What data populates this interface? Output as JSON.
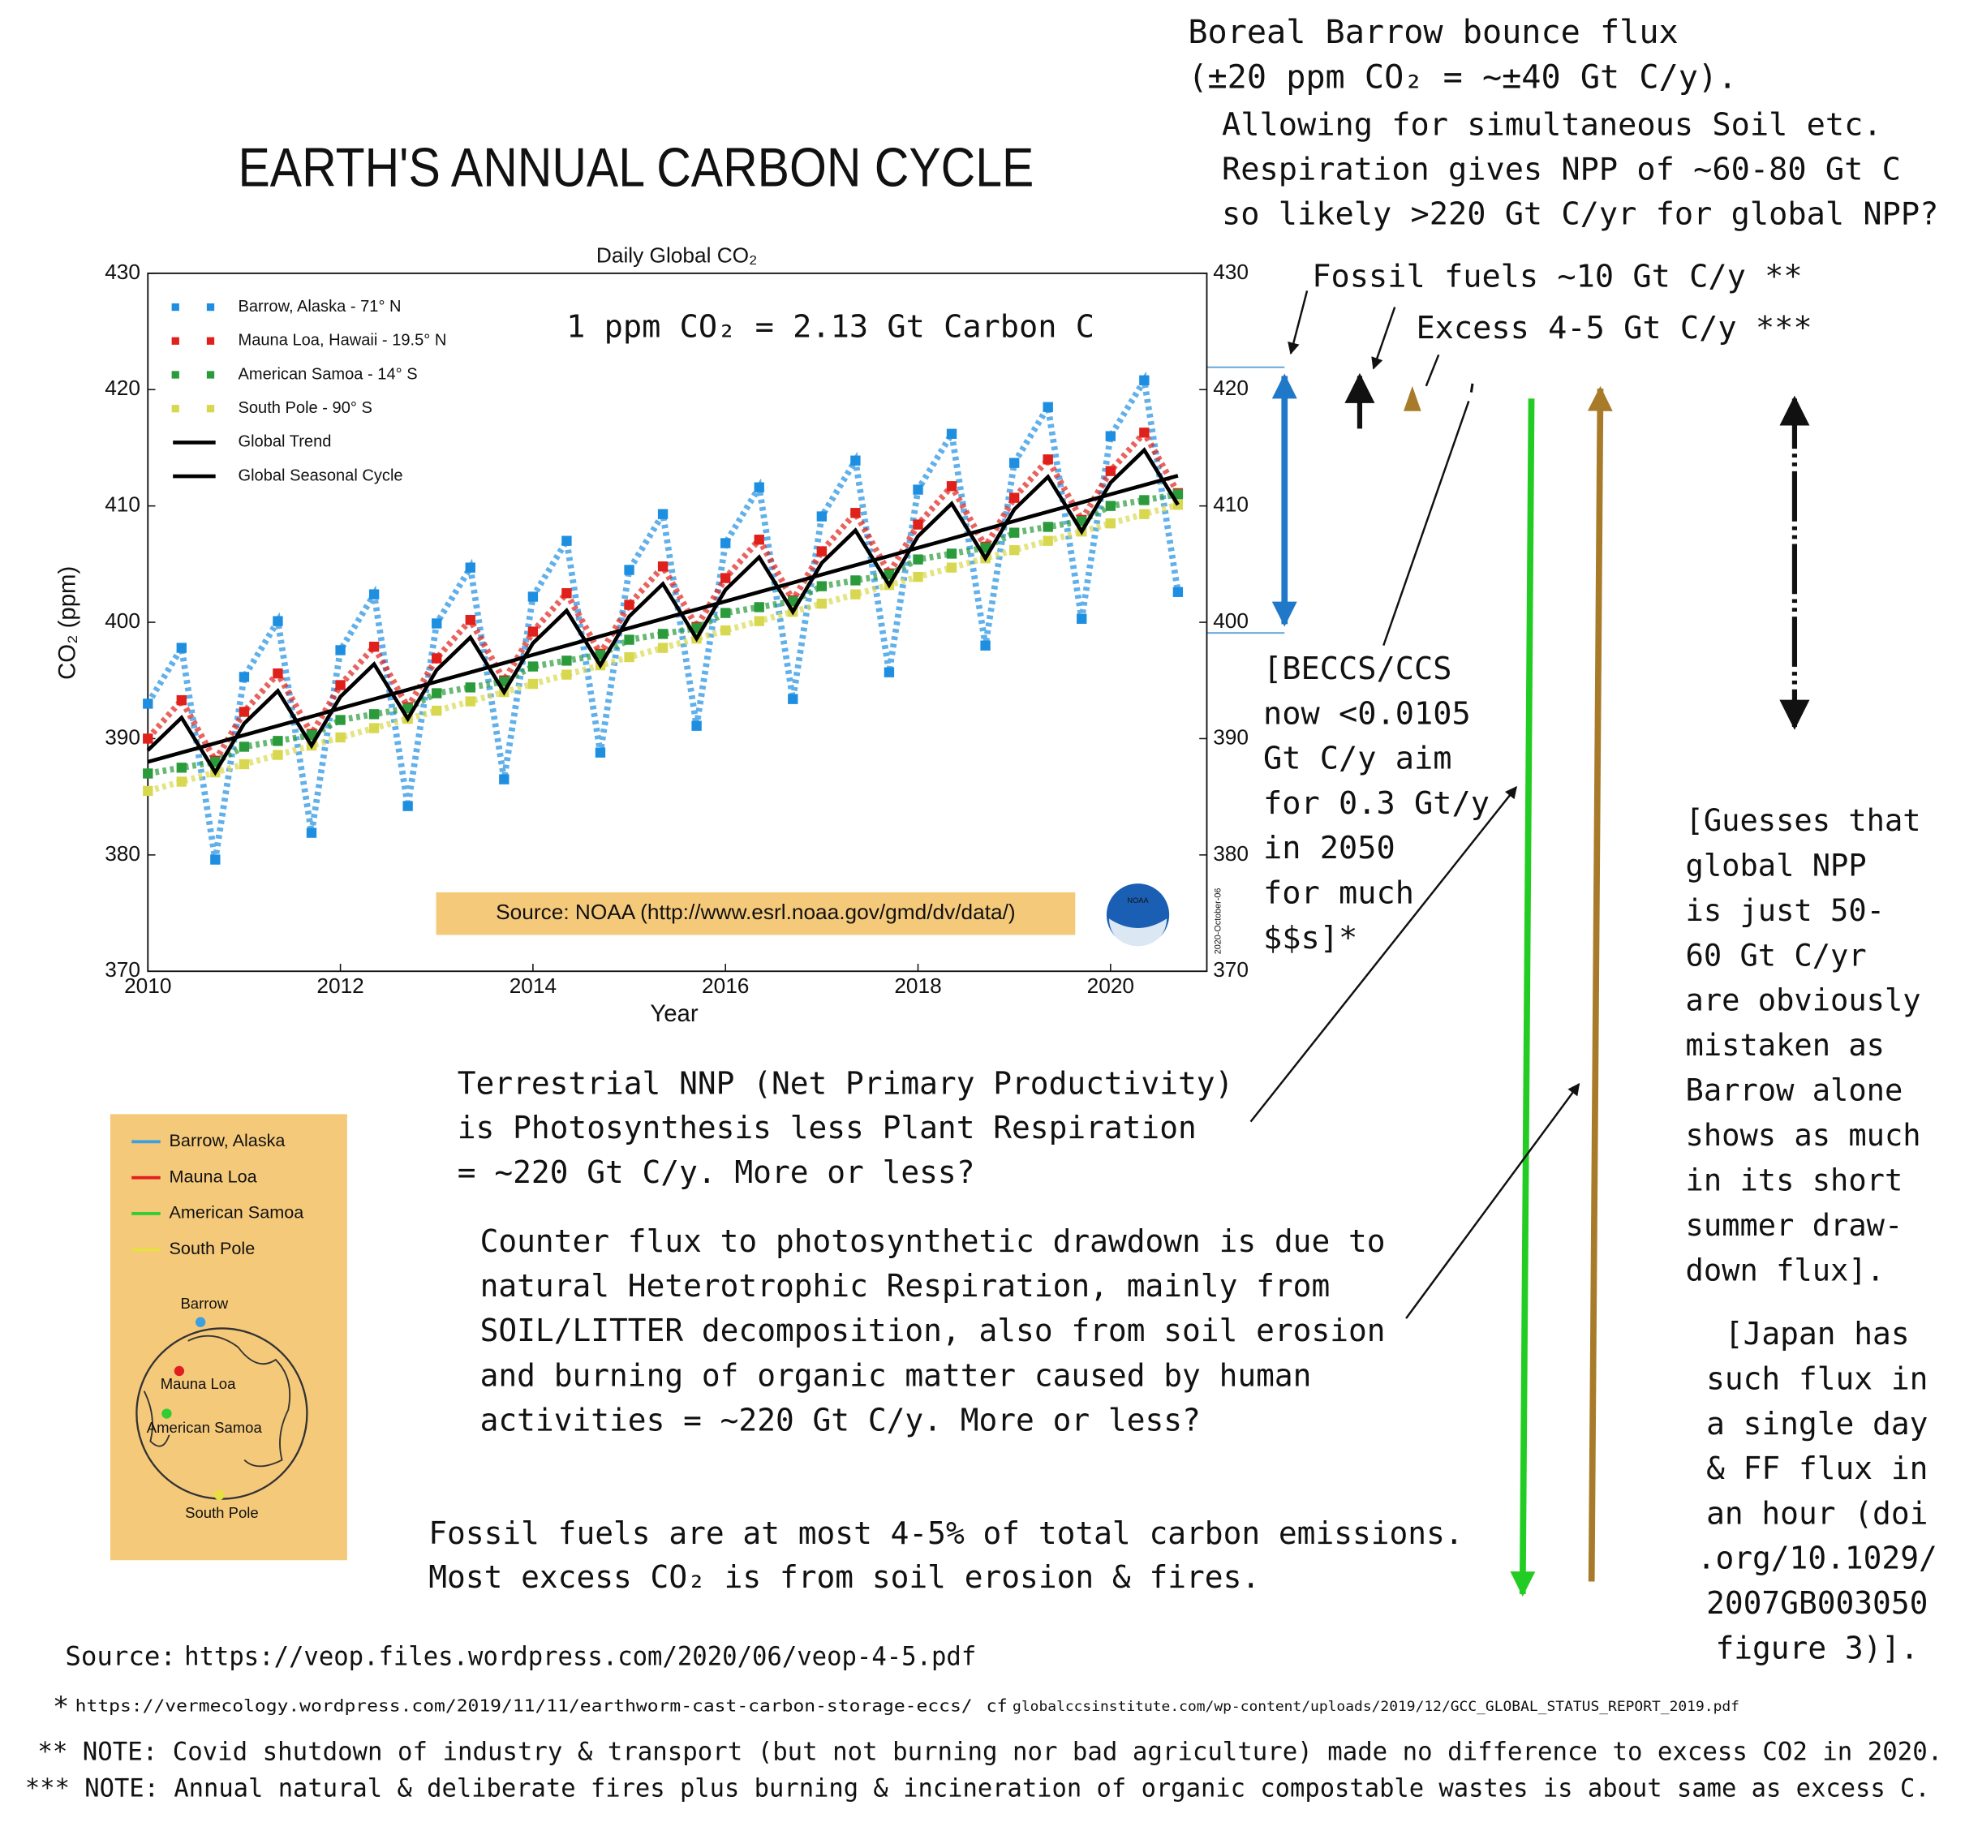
{
  "chart_data": {
    "type": "line",
    "title": "Daily Global CO₂",
    "x_label": "Year",
    "y_label": "CO₂ (ppm)",
    "conversion": "1 ppm CO₂ = 2.13 Gt Carbon C",
    "source": "Source: NOAA (http://www.esrl.noaa.gov/gmd/dv/data/)",
    "logo": "NOAA",
    "stamp": "2020-October-06",
    "x": [
      2010,
      2010.35,
      2010.7,
      2011,
      2011.35,
      2011.7,
      2012,
      2012.35,
      2012.7,
      2013,
      2013.35,
      2013.7,
      2014,
      2014.35,
      2014.7,
      2015,
      2015.35,
      2015.7,
      2016,
      2016.35,
      2016.7,
      2017,
      2017.35,
      2017.7,
      2018,
      2018.35,
      2018.7,
      2019,
      2019.35,
      2019.7,
      2020,
      2020.35,
      2020.7
    ],
    "xlim": [
      2010,
      2021
    ],
    "xticks": [
      2010,
      2012,
      2014,
      2016,
      2018,
      2020
    ],
    "ylim": [
      370,
      430
    ],
    "yticks": [
      370,
      380,
      390,
      400,
      410,
      420,
      430
    ],
    "y2lim": [
      370,
      430
    ],
    "y2ticks": [
      370,
      380,
      390,
      400,
      410,
      420,
      430
    ],
    "legend": "upper left",
    "series": [
      {
        "name": "Barrow, Alaska - 71° N",
        "color": "#1e8fe0",
        "style": "markers",
        "values": [
          393.0,
          397.8,
          379.6,
          395.3,
          400.1,
          381.9,
          397.6,
          402.4,
          384.2,
          399.9,
          404.7,
          386.5,
          402.2,
          407.0,
          388.8,
          404.5,
          409.3,
          391.1,
          406.8,
          411.6,
          393.4,
          409.1,
          413.9,
          395.7,
          411.4,
          416.2,
          398.0,
          413.7,
          418.5,
          400.3,
          416.0,
          420.8,
          402.6
        ]
      },
      {
        "name": "Mauna Loa, Hawaii - 19.5° N",
        "color": "#e0201a",
        "style": "markers",
        "values": [
          390.0,
          393.3,
          388.1,
          392.3,
          395.6,
          390.4,
          394.6,
          397.9,
          392.7,
          396.9,
          400.2,
          395.0,
          399.2,
          402.5,
          397.3,
          401.5,
          404.8,
          399.6,
          403.8,
          407.1,
          401.9,
          406.1,
          409.4,
          404.2,
          408.4,
          411.7,
          406.5,
          410.7,
          414.0,
          408.8,
          413.0,
          416.3,
          411.1
        ]
      },
      {
        "name": "American Samoa - 14° S",
        "color": "#2a9a3a",
        "style": "markers",
        "values": [
          387.0,
          387.5,
          388.0,
          389.3,
          389.8,
          390.3,
          391.6,
          392.1,
          392.6,
          393.9,
          394.4,
          394.9,
          396.2,
          396.7,
          397.2,
          398.5,
          399.0,
          399.5,
          400.8,
          401.3,
          401.8,
          403.1,
          403.6,
          404.1,
          405.4,
          405.9,
          406.4,
          407.7,
          408.2,
          408.7,
          410.0,
          410.5,
          411.0
        ]
      },
      {
        "name": "South Pole - 90° S",
        "color": "#d8d850",
        "style": "markers",
        "values": [
          385.5,
          386.3,
          387.1,
          387.8,
          388.6,
          389.4,
          390.1,
          390.9,
          391.7,
          392.4,
          393.2,
          394.0,
          394.7,
          395.5,
          396.3,
          397.0,
          397.8,
          398.6,
          399.3,
          400.1,
          400.9,
          401.6,
          402.4,
          403.2,
          403.9,
          404.7,
          405.5,
          406.2,
          407.0,
          407.8,
          408.5,
          409.3,
          410.1
        ]
      },
      {
        "name": "Global Trend",
        "color": "#000000",
        "style": "line",
        "values": [
          388.0,
          388.8,
          389.6,
          390.3,
          391.1,
          391.9,
          392.6,
          393.4,
          394.2,
          394.9,
          395.7,
          396.5,
          397.2,
          398.0,
          398.8,
          399.5,
          400.3,
          401.1,
          401.8,
          402.6,
          403.4,
          404.1,
          404.9,
          405.7,
          406.4,
          407.2,
          408.0,
          408.7,
          409.5,
          410.3,
          411.0,
          411.8,
          412.6
        ]
      },
      {
        "name": "Global Seasonal Cycle",
        "color": "#000000",
        "style": "line",
        "values": [
          389.0,
          391.8,
          387.1,
          391.3,
          394.1,
          389.4,
          393.6,
          396.4,
          391.7,
          395.9,
          398.7,
          394.0,
          398.2,
          401.0,
          396.3,
          400.5,
          403.3,
          398.6,
          402.8,
          405.6,
          400.9,
          405.1,
          407.9,
          403.2,
          407.4,
          410.2,
          405.5,
          409.7,
          412.5,
          407.8,
          412.0,
          414.8,
          410.1
        ]
      }
    ]
  },
  "poster": {
    "title": "EARTH'S ANNUAL CARBON CYCLE",
    "boreal": [
      "Boreal Barrow bounce flux",
      "(±20 ppm CO₂ = ~±40 Gt C/y)."
    ],
    "allowing": [
      "Allowing for simultaneous Soil etc.",
      "Respiration gives NPP of ~60-80 Gt C",
      "so likely >220 Gt C/yr for global NPP?"
    ],
    "fossil_fuels": "Fossil fuels ~10 Gt C/y  **",
    "excess": "Excess 4-5 Gt C/y  ***",
    "beccs": [
      "[BECCS/CCS",
      "now <0.0105",
      "Gt C/y aim",
      "for 0.3 Gt/y",
      "in 2050",
      "for much",
      "$$s]*"
    ],
    "guesses": [
      "[Guesses that",
      "global NPP",
      "is just 50-",
      "60 Gt C/yr",
      "are obviously",
      "mistaken as",
      "Barrow alone",
      "shows as much",
      "in its short",
      "summer draw-",
      "down flux]."
    ],
    "japan": [
      "[Japan has",
      "such flux in",
      "a single day",
      "& FF flux in",
      "an hour (doi",
      ".org/10.1029/",
      "2007GB003050",
      "figure 3)]."
    ],
    "terrestrial": [
      "Terrestrial NNP (Net Primary Productivity)",
      "is Photosynthesis less Plant Respiration",
      "= ~220 Gt C/y. More or less?"
    ],
    "counter_flux": [
      "Counter flux to photosynthetic drawdown is due to",
      "natural Heterotrophic Respiration, mainly from",
      "SOIL/LITTER decomposition, also from soil erosion",
      "and burning of organic matter caused by human",
      "activities = ~220 Gt C/y. More or less?"
    ],
    "fossil_share": [
      "Fossil fuels are at most 4-5% of total carbon emissions.",
      "Most excess CO₂ is from soil erosion & fires."
    ],
    "source_label": "Source:",
    "source_url": "https://veop.files.wordpress.com/2020/06/veop-4-5.pdf",
    "footnote_star": "*",
    "footnote_url": "https://vermecology.wordpress.com/2019/11/11/earthworm-cast-carbon-storage-eccs/",
    "footnote_cf": "cf",
    "footnote_cf_url": "globalccsinstitute.com/wp-content/uploads/2019/12/GCC_GLOBAL_STATUS_REPORT_2019.pdf",
    "note_2": "** NOTE: Covid shutdown of industry & transport (but not burning nor bad agriculture) made no difference to excess CO2 in 2020.",
    "note_3": "*** NOTE: Annual natural & deliberate fires plus burning & incineration of organic compostable wastes is about same as excess C."
  },
  "map_inset": {
    "legend": [
      "Barrow, Alaska",
      "Mauna Loa",
      "American Samoa",
      "South Pole"
    ],
    "labels": [
      "Barrow",
      "Mauna Loa",
      "American Samoa",
      "South Pole"
    ]
  }
}
